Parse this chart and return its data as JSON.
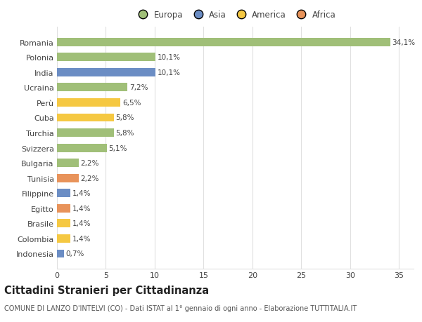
{
  "categories": [
    "Indonesia",
    "Colombia",
    "Brasile",
    "Egitto",
    "Filippine",
    "Tunisia",
    "Bulgaria",
    "Svizzera",
    "Turchia",
    "Cuba",
    "Perù",
    "Ucraina",
    "India",
    "Polonia",
    "Romania"
  ],
  "values": [
    0.7,
    1.4,
    1.4,
    1.4,
    1.4,
    2.2,
    2.2,
    5.1,
    5.8,
    5.8,
    6.5,
    7.2,
    10.1,
    10.1,
    34.1
  ],
  "labels": [
    "0,7%",
    "1,4%",
    "1,4%",
    "1,4%",
    "1,4%",
    "2,2%",
    "2,2%",
    "5,1%",
    "5,8%",
    "5,8%",
    "6,5%",
    "7,2%",
    "10,1%",
    "10,1%",
    "34,1%"
  ],
  "colors": [
    "#6b8dc4",
    "#f5c842",
    "#f5c842",
    "#e8935a",
    "#6b8dc4",
    "#e8935a",
    "#a0bf78",
    "#a0bf78",
    "#a0bf78",
    "#f5c842",
    "#f5c842",
    "#a0bf78",
    "#6b8dc4",
    "#a0bf78",
    "#a0bf78"
  ],
  "legend_labels": [
    "Europa",
    "Asia",
    "America",
    "Africa"
  ],
  "legend_colors": [
    "#a0bf78",
    "#6b8dc4",
    "#f5c842",
    "#e8935a"
  ],
  "title": "Cittadini Stranieri per Cittadinanza",
  "subtitle": "COMUNE DI LANZO D'INTELVI (CO) - Dati ISTAT al 1° gennaio di ogni anno - Elaborazione TUTTITALIA.IT",
  "xlim": [
    0,
    36.5
  ],
  "xticks": [
    0,
    5,
    10,
    15,
    20,
    25,
    30,
    35
  ],
  "background_color": "#ffffff",
  "plot_bg_color": "#ffffff",
  "grid_color": "#e0e0e0",
  "bar_height": 0.55,
  "title_fontsize": 10.5,
  "subtitle_fontsize": 7,
  "tick_fontsize": 8,
  "label_fontsize": 7.5
}
